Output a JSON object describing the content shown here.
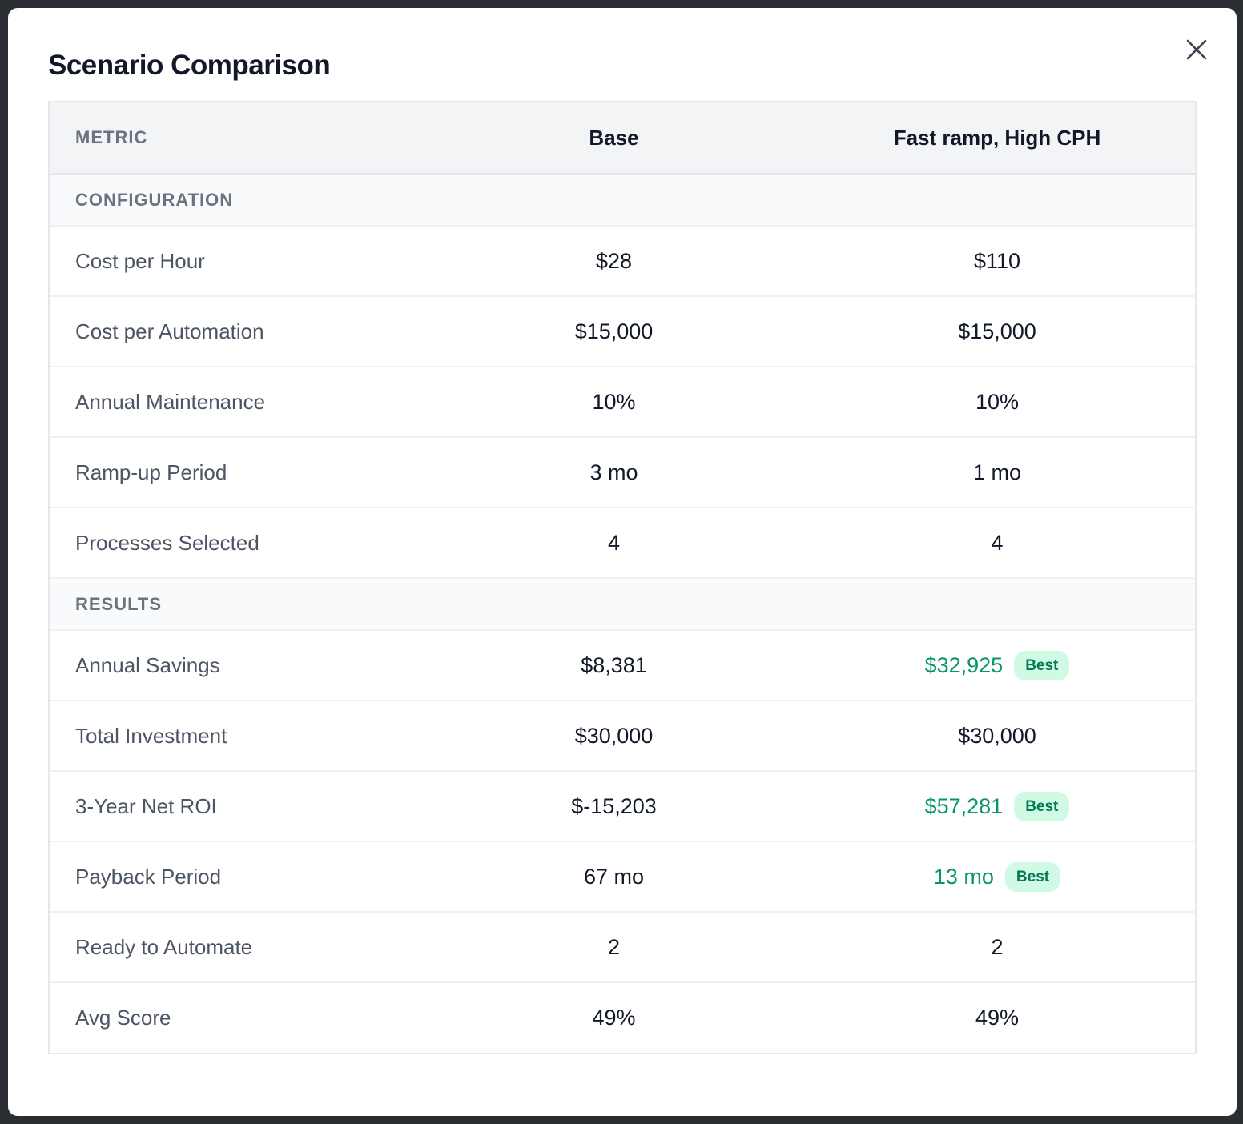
{
  "modal": {
    "title": "Scenario Comparison"
  },
  "table": {
    "header": {
      "metric": "METRIC",
      "scenario_a": "Base",
      "scenario_b": "Fast ramp, High CPH"
    },
    "sections": [
      {
        "title": "CONFIGURATION",
        "rows": [
          {
            "label": "Cost per Hour",
            "a": "$28",
            "b": "$110"
          },
          {
            "label": "Cost per Automation",
            "a": "$15,000",
            "b": "$15,000"
          },
          {
            "label": "Annual Maintenance",
            "a": "10%",
            "b": "10%"
          },
          {
            "label": "Ramp-up Period",
            "a": "3 mo",
            "b": "1 mo"
          },
          {
            "label": "Processes Selected",
            "a": "4",
            "b": "4"
          }
        ]
      },
      {
        "title": "RESULTS",
        "rows": [
          {
            "label": "Annual Savings",
            "a": "$8,381",
            "b": "$32,925",
            "b_badge": "Best"
          },
          {
            "label": "Total Investment",
            "a": "$30,000",
            "b": "$30,000"
          },
          {
            "label": "3-Year Net ROI",
            "a": "$-15,203",
            "b": "$57,281",
            "b_badge": "Best"
          },
          {
            "label": "Payback Period",
            "a": "67 mo",
            "b": "13 mo",
            "b_badge": "Best"
          },
          {
            "label": "Ready to Automate",
            "a": "2",
            "b": "2"
          },
          {
            "label": "Avg Score",
            "a": "49%",
            "b": "49%"
          }
        ]
      }
    ]
  },
  "colors": {
    "best_value": "#059669",
    "best_badge_bg": "#d1fae5",
    "header_bg": "#f3f4f6"
  },
  "icons": {
    "close": "close-icon"
  }
}
